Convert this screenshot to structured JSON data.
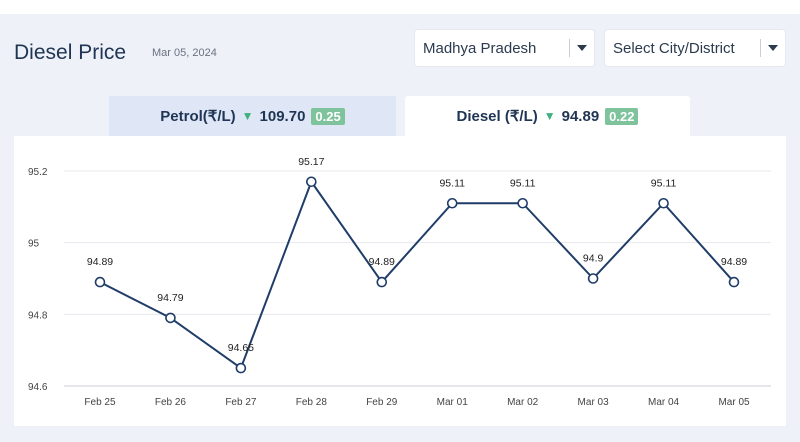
{
  "header": {
    "title": "Diesel Price",
    "date": "Mar 05, 2024"
  },
  "filters": {
    "state": "Madhya Pradesh",
    "city": "Select City/District"
  },
  "tabs": [
    {
      "fuel": "Petrol(₹/L)",
      "price": "109.70",
      "change": "0.25",
      "trend": "down",
      "active": false
    },
    {
      "fuel": "Diesel (₹/L)",
      "price": "94.89",
      "change": "0.22",
      "trend": "down",
      "active": true
    }
  ],
  "colors": {
    "line": "#1f3d68",
    "badge": "#7ec39b",
    "down_arrow": "#3fb07f",
    "active_tab": "#ffffff",
    "inactive_tab": "#dfe7f7"
  },
  "chart_data": {
    "type": "line",
    "categories": [
      "Feb 25",
      "Feb 26",
      "Feb 27",
      "Feb 28",
      "Feb 29",
      "Mar 01",
      "Mar 02",
      "Mar 03",
      "Mar 04",
      "Mar 05"
    ],
    "values": [
      94.89,
      94.79,
      94.65,
      95.17,
      94.89,
      95.11,
      95.11,
      94.9,
      95.11,
      94.89
    ],
    "data_labels": [
      "94.89",
      "94.79",
      "94.65",
      "95.17",
      "94.89",
      "95.11",
      "95.11",
      "94.9",
      "95.11",
      "94.89"
    ],
    "y_ticks": [
      "94.6",
      "94.8",
      "95",
      "95.2"
    ],
    "y_tick_values": [
      94.6,
      94.8,
      95.0,
      95.2
    ],
    "ylim": [
      94.6,
      95.2
    ],
    "grid": "horizontal",
    "legend": "none"
  }
}
